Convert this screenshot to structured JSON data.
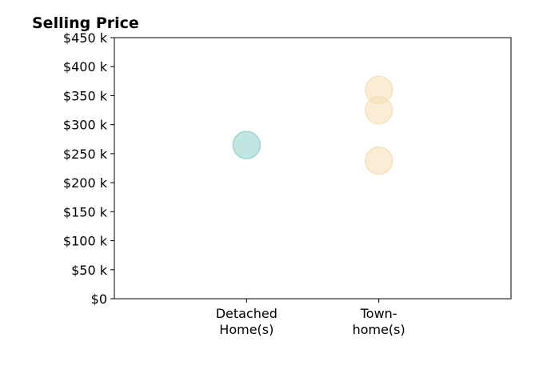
{
  "chart_data": {
    "type": "scatter",
    "title": "Selling Price",
    "xlabel": "",
    "ylabel": "",
    "categories": [
      [
        "Detached",
        "Home(s)"
      ],
      [
        "Town-",
        "home(s)"
      ]
    ],
    "x_range": [
      -1,
      2
    ],
    "ylim": [
      0,
      450000
    ],
    "y_ticks": [
      0,
      50000,
      100000,
      150000,
      200000,
      250000,
      300000,
      350000,
      400000,
      450000
    ],
    "y_tick_labels": [
      "$0",
      "$50 k",
      "$100 k",
      "$150 k",
      "$200 k",
      "$250 k",
      "$300 k",
      "$350 k",
      "$400 k",
      "$450 k"
    ],
    "grid": false,
    "series": [
      {
        "category": "Detached Home(s)",
        "color": "#8ecfc9",
        "points": [
          {
            "x": 0,
            "y": 265000
          }
        ]
      },
      {
        "category": "Town-home(s)",
        "color": "#f5deb3",
        "points": [
          {
            "x": 1,
            "y": 360000
          },
          {
            "x": 1,
            "y": 325000
          },
          {
            "x": 1,
            "y": 238000
          }
        ]
      }
    ]
  }
}
